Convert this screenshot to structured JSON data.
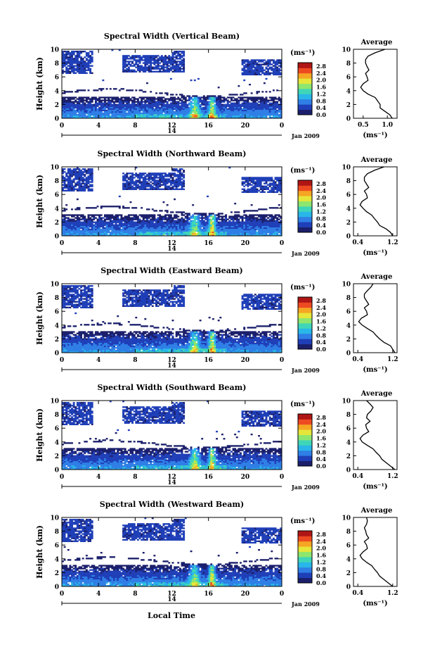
{
  "figure": {
    "xlabel": "Local Time",
    "date_label": "Jan 2009",
    "day_label": "14",
    "colorbar_unit": "(ms⁻¹)",
    "average_title": "Average",
    "average_unit": "(ms⁻¹)",
    "colormap": [
      "#1b1f6b",
      "#1f3fb8",
      "#2f7fe6",
      "#29b6e8",
      "#3fd6b8",
      "#8fe66e",
      "#e6e63a",
      "#f5a623",
      "#ee4a22",
      "#b01515"
    ]
  },
  "chart_data": [
    {
      "type": "heatmap",
      "title": "Spectral Width (Vertical Beam)",
      "ylabel": "Height (km)",
      "x_ticks": [
        "0",
        "4",
        "8",
        "12",
        "16",
        "20",
        "0"
      ],
      "xlim": [
        0,
        24
      ],
      "y_ticks": [
        "0",
        "2",
        "4",
        "6",
        "8",
        "10"
      ],
      "ylim": [
        0,
        10
      ],
      "colorbar_ticks": [
        "0.0",
        "0.4",
        "0.8",
        "1.2",
        "1.6",
        "2.0",
        "2.4",
        "2.8"
      ],
      "colorbar_range": [
        0,
        3.0
      ],
      "average": {
        "x_ticks": [
          "0.5",
          "1.0"
        ],
        "xlim": [
          0.3,
          1.2
        ],
        "profile": [
          [
            0,
            1.1
          ],
          [
            0.5,
            1.05
          ],
          [
            1,
            0.95
          ],
          [
            1.5,
            0.85
          ],
          [
            2,
            0.85
          ],
          [
            2.5,
            0.8
          ],
          [
            3,
            0.75
          ],
          [
            3.5,
            0.6
          ],
          [
            4,
            0.5
          ],
          [
            4.5,
            0.45
          ],
          [
            5,
            0.5
          ],
          [
            5.5,
            0.6
          ],
          [
            6,
            0.58
          ],
          [
            6.5,
            0.55
          ],
          [
            7,
            0.62
          ],
          [
            7.5,
            0.58
          ],
          [
            8,
            0.55
          ],
          [
            8.5,
            0.55
          ],
          [
            9,
            0.6
          ],
          [
            9.5,
            0.75
          ],
          [
            10,
            0.95
          ]
        ]
      }
    },
    {
      "type": "heatmap",
      "title": "Spectral Width (Northward Beam)",
      "ylabel": "Height (km)",
      "x_ticks": [
        "0",
        "4",
        "8",
        "12",
        "16",
        "20",
        "0"
      ],
      "xlim": [
        0,
        24
      ],
      "y_ticks": [
        "0",
        "2",
        "4",
        "6",
        "8",
        "10"
      ],
      "ylim": [
        0,
        10
      ],
      "colorbar_ticks": [
        "0.0",
        "0.4",
        "0.8",
        "1.2",
        "1.6",
        "2.0",
        "2.4",
        "2.8"
      ],
      "colorbar_range": [
        0,
        3.0
      ],
      "average": {
        "x_ticks": [
          "0.4",
          "1.2"
        ],
        "xlim": [
          0.3,
          1.3
        ],
        "profile": [
          [
            0,
            1.2
          ],
          [
            0.5,
            1.15
          ],
          [
            1,
            1.05
          ],
          [
            1.5,
            0.9
          ],
          [
            2,
            0.85
          ],
          [
            2.5,
            0.78
          ],
          [
            3,
            0.72
          ],
          [
            3.5,
            0.6
          ],
          [
            4,
            0.52
          ],
          [
            4.5,
            0.45
          ],
          [
            5,
            0.5
          ],
          [
            5.5,
            0.62
          ],
          [
            6,
            0.6
          ],
          [
            6.5,
            0.55
          ],
          [
            7,
            0.65
          ],
          [
            7.5,
            0.6
          ],
          [
            8,
            0.55
          ],
          [
            8.5,
            0.55
          ],
          [
            9,
            0.62
          ],
          [
            9.5,
            0.78
          ],
          [
            10,
            1.0
          ]
        ]
      }
    },
    {
      "type": "heatmap",
      "title": "Spectral Width (Eastward Beam)",
      "ylabel": "Height (km)",
      "x_ticks": [
        "0",
        "4",
        "8",
        "12",
        "16",
        "20",
        "0"
      ],
      "xlim": [
        0,
        24
      ],
      "y_ticks": [
        "0",
        "2",
        "4",
        "6",
        "8",
        "10"
      ],
      "ylim": [
        0,
        10
      ],
      "colorbar_ticks": [
        "0.0",
        "0.4",
        "0.8",
        "1.2",
        "1.6",
        "2.0",
        "2.4",
        "2.8"
      ],
      "colorbar_range": [
        0,
        3.0
      ],
      "average": {
        "x_ticks": [
          "0.4",
          "1.2"
        ],
        "xlim": [
          0.3,
          1.3
        ],
        "profile": [
          [
            0,
            1.25
          ],
          [
            0.5,
            1.2
          ],
          [
            1,
            1.15
          ],
          [
            1.5,
            1.0
          ],
          [
            2,
            0.9
          ],
          [
            2.5,
            0.82
          ],
          [
            3,
            0.75
          ],
          [
            3.5,
            0.62
          ],
          [
            4,
            0.5
          ],
          [
            4.5,
            0.42
          ],
          [
            5,
            0.48
          ],
          [
            5.5,
            0.62
          ],
          [
            6,
            0.6
          ],
          [
            6.5,
            0.55
          ],
          [
            7,
            0.65
          ],
          [
            7.5,
            0.6
          ],
          [
            8,
            0.55
          ],
          [
            8.5,
            0.55
          ],
          [
            9,
            0.62
          ],
          [
            9.5,
            0.7
          ],
          [
            10,
            0.75
          ]
        ]
      }
    },
    {
      "type": "heatmap",
      "title": "Spectral Width (Southward Beam)",
      "ylabel": "Height (km)",
      "x_ticks": [
        "0",
        "4",
        "8",
        "12",
        "16",
        "20",
        "0"
      ],
      "xlim": [
        0,
        24
      ],
      "y_ticks": [
        "0",
        "2",
        "4",
        "6",
        "8",
        "10"
      ],
      "ylim": [
        0,
        10
      ],
      "colorbar_ticks": [
        "0.0",
        "0.4",
        "0.8",
        "1.2",
        "1.6",
        "2.0",
        "2.4",
        "2.8"
      ],
      "colorbar_range": [
        0,
        3.0
      ],
      "average": {
        "x_ticks": [
          "0.4",
          "1.2"
        ],
        "xlim": [
          0.3,
          1.3
        ],
        "profile": [
          [
            0,
            1.25
          ],
          [
            0.5,
            1.15
          ],
          [
            1,
            1.05
          ],
          [
            1.5,
            0.95
          ],
          [
            2,
            0.9
          ],
          [
            2.5,
            0.82
          ],
          [
            3,
            0.75
          ],
          [
            3.5,
            0.62
          ],
          [
            4,
            0.5
          ],
          [
            4.5,
            0.45
          ],
          [
            5,
            0.52
          ],
          [
            5.5,
            0.65
          ],
          [
            6,
            0.6
          ],
          [
            6.5,
            0.58
          ],
          [
            7,
            0.68
          ],
          [
            7.5,
            0.6
          ],
          [
            8,
            0.62
          ],
          [
            8.5,
            0.7
          ],
          [
            9,
            0.75
          ],
          [
            9.5,
            0.68
          ],
          [
            10,
            0.6
          ]
        ]
      }
    },
    {
      "type": "heatmap",
      "title": "Spectral Width (Westward Beam)",
      "ylabel": "Height (km)",
      "x_ticks": [
        "0",
        "4",
        "8",
        "12",
        "16",
        "20",
        "0"
      ],
      "xlim": [
        0,
        24
      ],
      "y_ticks": [
        "0",
        "2",
        "4",
        "6",
        "8",
        "10"
      ],
      "ylim": [
        0,
        10
      ],
      "colorbar_ticks": [
        "0.0",
        "0.4",
        "0.8",
        "1.2",
        "1.6",
        "2.0",
        "2.4",
        "2.8"
      ],
      "colorbar_range": [
        0,
        3.0
      ],
      "average": {
        "x_ticks": [
          "0.4",
          "1.2"
        ],
        "xlim": [
          0.3,
          1.3
        ],
        "profile": [
          [
            0,
            1.2
          ],
          [
            0.5,
            1.1
          ],
          [
            1,
            1.0
          ],
          [
            1.5,
            0.9
          ],
          [
            2,
            0.85
          ],
          [
            2.5,
            0.78
          ],
          [
            3,
            0.72
          ],
          [
            3.5,
            0.6
          ],
          [
            4,
            0.5
          ],
          [
            4.5,
            0.45
          ],
          [
            5,
            0.52
          ],
          [
            5.5,
            0.62
          ],
          [
            6,
            0.6
          ],
          [
            6.5,
            0.55
          ],
          [
            7,
            0.65
          ],
          [
            7.5,
            0.6
          ],
          [
            8,
            0.58
          ],
          [
            8.5,
            0.55
          ],
          [
            9,
            0.6
          ],
          [
            9.5,
            0.62
          ],
          [
            10,
            0.6
          ]
        ]
      }
    }
  ]
}
